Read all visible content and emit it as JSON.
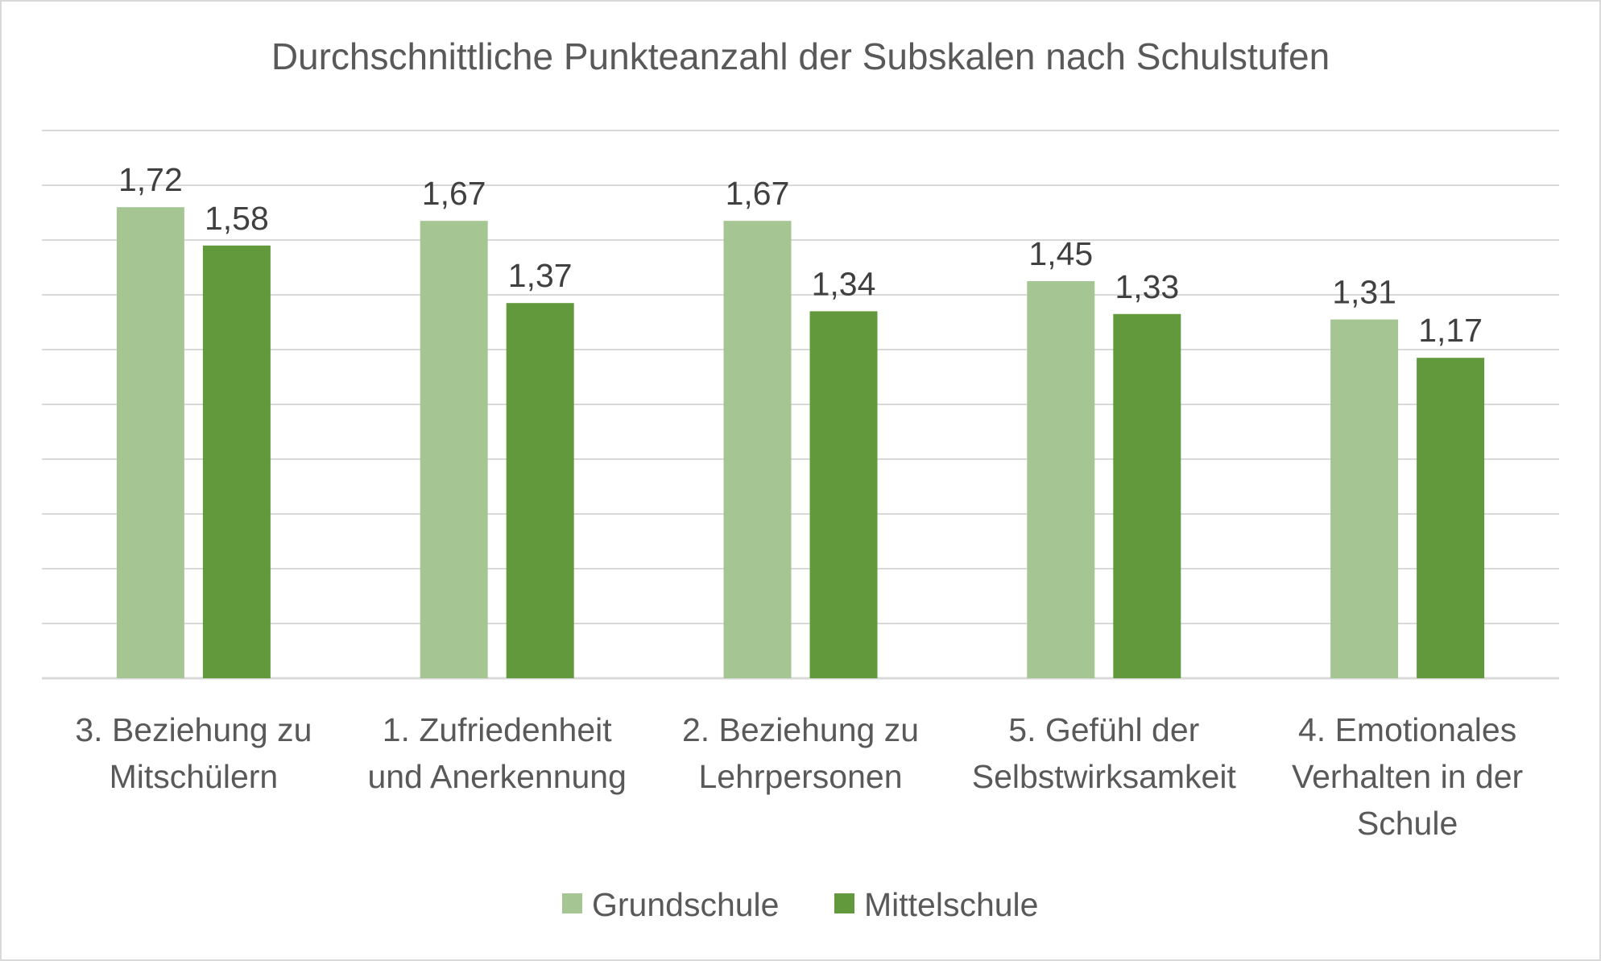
{
  "chart_data": {
    "type": "bar",
    "title": "Durchschnittliche Punkteanzahl der Subskalen nach Schulstufen",
    "categories": [
      [
        "3. Beziehung zu",
        "Mitschülern"
      ],
      [
        "1. Zufriedenheit",
        "und Anerkennung"
      ],
      [
        "2. Beziehung zu",
        "Lehrpersonen"
      ],
      [
        "5. Gefühl der",
        "Selbstwirksamkeit"
      ],
      [
        "4. Emotionales",
        "Verhalten in der",
        "Schule"
      ]
    ],
    "series": [
      {
        "name": "Grundschule",
        "color": "#a5c693",
        "values": [
          1.72,
          1.67,
          1.67,
          1.45,
          1.31
        ],
        "labels": [
          "1,72",
          "1,67",
          "1,67",
          "1,45",
          "1,31"
        ]
      },
      {
        "name": "Mittelschule",
        "color": "#63993d",
        "values": [
          1.58,
          1.37,
          1.34,
          1.33,
          1.17
        ],
        "labels": [
          "1,58",
          "1,37",
          "1,34",
          "1,33",
          "1,17"
        ]
      }
    ],
    "ylim": [
      0,
      2.0
    ],
    "grid_step": 0.2,
    "gridlines": true,
    "xlabel": "",
    "ylabel": "",
    "legend_position": "bottom"
  }
}
